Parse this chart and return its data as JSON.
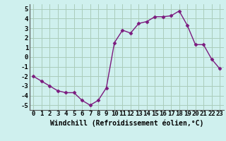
{
  "x": [
    0,
    1,
    2,
    3,
    4,
    5,
    6,
    7,
    8,
    9,
    10,
    11,
    12,
    13,
    14,
    15,
    16,
    17,
    18,
    19,
    20,
    21,
    22,
    23
  ],
  "y": [
    -2.0,
    -2.5,
    -3.0,
    -3.5,
    -3.7,
    -3.7,
    -4.5,
    -5.0,
    -4.5,
    -3.2,
    1.5,
    2.8,
    2.5,
    3.5,
    3.7,
    4.2,
    4.2,
    4.3,
    4.8,
    3.3,
    1.3,
    1.3,
    -0.2,
    -1.2
  ],
  "line_color": "#7b1a7e",
  "marker": "D",
  "marker_size": 2.5,
  "xlabel": "Windchill (Refroidissement éolien,°C)",
  "xlim": [
    -0.5,
    23.5
  ],
  "ylim": [
    -5.5,
    5.5
  ],
  "yticks": [
    -5,
    -4,
    -3,
    -2,
    -1,
    0,
    1,
    2,
    3,
    4,
    5
  ],
  "xticks": [
    0,
    1,
    2,
    3,
    4,
    5,
    6,
    7,
    8,
    9,
    10,
    11,
    12,
    13,
    14,
    15,
    16,
    17,
    18,
    19,
    20,
    21,
    22,
    23
  ],
  "xtick_labels": [
    "0",
    "1",
    "2",
    "3",
    "4",
    "5",
    "6",
    "7",
    "8",
    "9",
    "10",
    "11",
    "12",
    "13",
    "14",
    "15",
    "16",
    "17",
    "18",
    "19",
    "20",
    "21",
    "22",
    "23"
  ],
  "bg_color": "#cff0ee",
  "grid_color": "#aaccbb",
  "xlabel_fontsize": 7,
  "tick_fontsize": 6.5,
  "linewidth": 1.0
}
